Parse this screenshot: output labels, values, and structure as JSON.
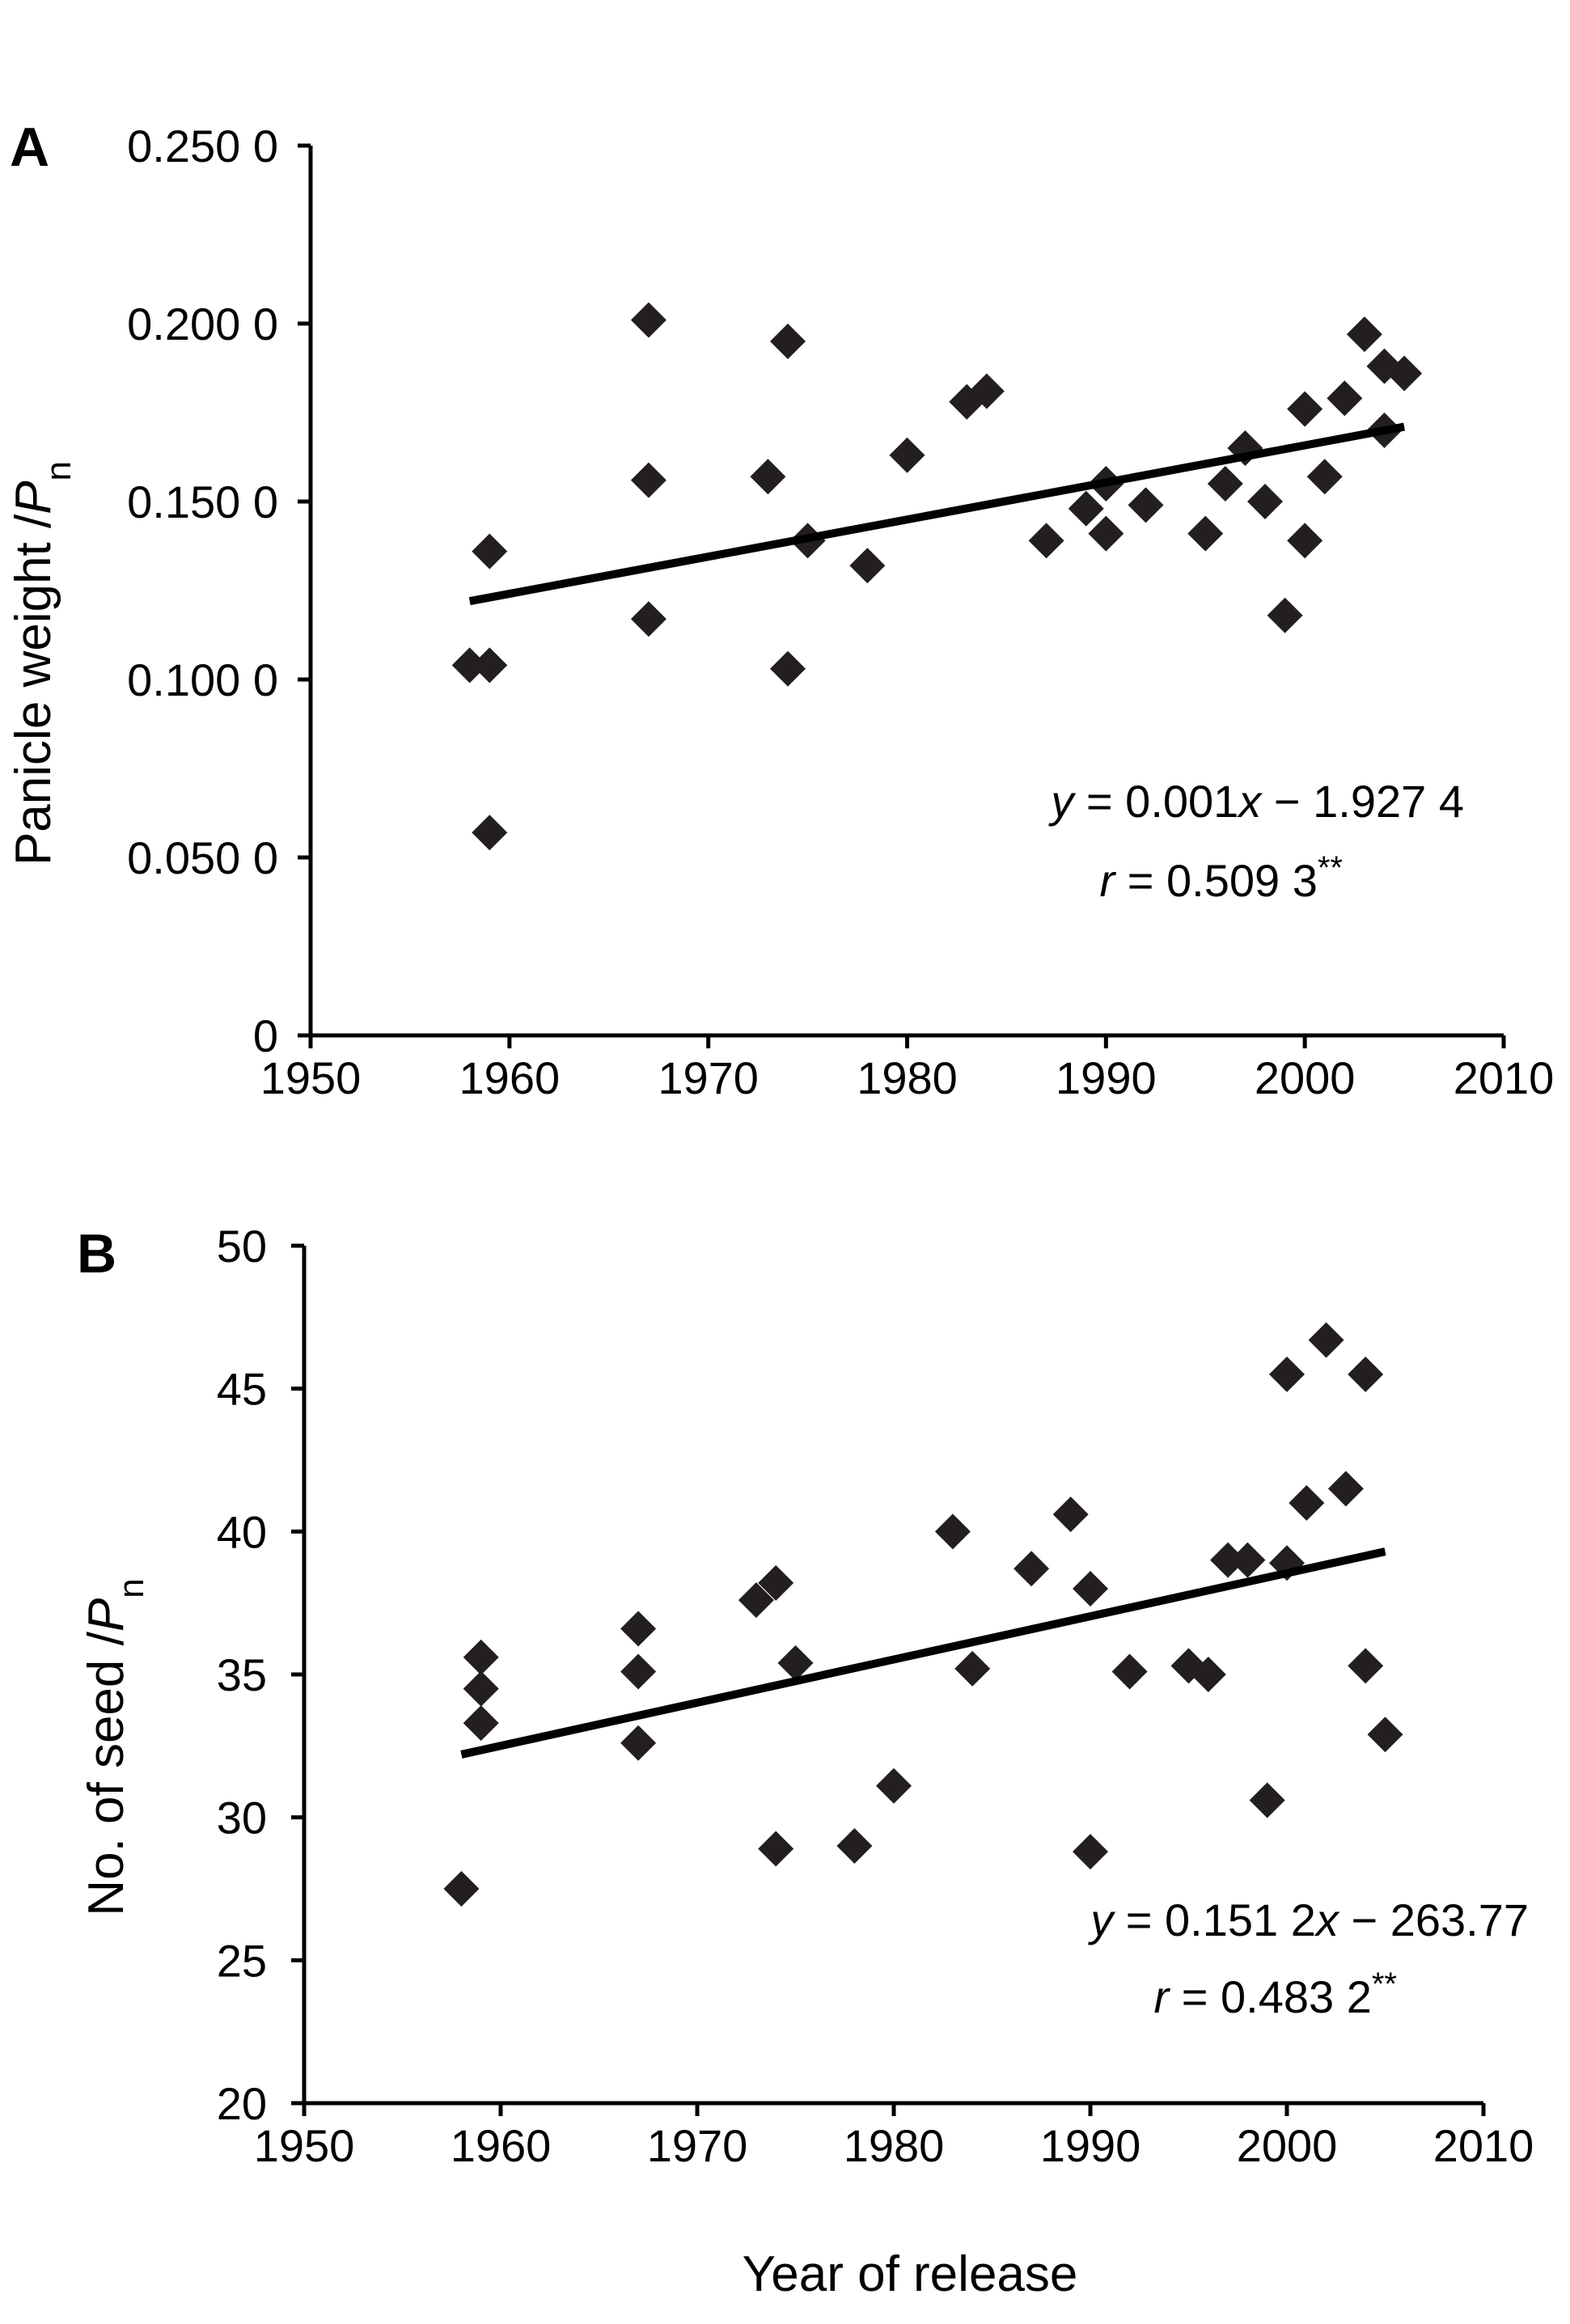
{
  "chart_data": [
    {
      "type": "scatter",
      "panel_label": "A",
      "ylabel": "Panicle weight /",
      "ylabel_var": "P",
      "ylabel_sub": "n",
      "xlabel": "",
      "xlim": [
        1950,
        2010
      ],
      "ylim": [
        0,
        0.25
      ],
      "xticks": [
        1950,
        1960,
        1970,
        1980,
        1990,
        2000,
        2010
      ],
      "yticks": [
        0,
        0.05,
        0.1,
        0.15,
        0.2,
        0.25
      ],
      "ytick_labels": [
        "0",
        "0.050 0",
        "0.100 0",
        "0.150 0",
        "0.200 0",
        "0.250 0"
      ],
      "points": [
        [
          1958,
          0.104
        ],
        [
          1959,
          0.104
        ],
        [
          1959,
          0.136
        ],
        [
          1959,
          0.057
        ],
        [
          1967,
          0.201
        ],
        [
          1967,
          0.156
        ],
        [
          1967,
          0.117
        ],
        [
          1973,
          0.157
        ],
        [
          1974,
          0.195
        ],
        [
          1974,
          0.103
        ],
        [
          1975,
          0.139
        ],
        [
          1978,
          0.132
        ],
        [
          1980,
          0.163
        ],
        [
          1983,
          0.178
        ],
        [
          1984,
          0.181
        ],
        [
          1987,
          0.139
        ],
        [
          1989,
          0.148
        ],
        [
          1990,
          0.155
        ],
        [
          1990,
          0.141
        ],
        [
          1992,
          0.149
        ],
        [
          1995,
          0.141
        ],
        [
          1996,
          0.155
        ],
        [
          1997,
          0.165
        ],
        [
          1998,
          0.15
        ],
        [
          1999,
          0.118
        ],
        [
          2000,
          0.176
        ],
        [
          2000,
          0.139
        ],
        [
          2001,
          0.157
        ],
        [
          2002,
          0.179
        ],
        [
          2003,
          0.197
        ],
        [
          2004,
          0.188
        ],
        [
          2004,
          0.17
        ],
        [
          2005,
          0.186
        ]
      ],
      "trendline": {
        "x": [
          1958,
          2005
        ],
        "y": [
          0.122,
          0.171
        ]
      },
      "annotation": {
        "line1": {
          "var": "y",
          "rest": " = 0.001",
          "xvar": "x",
          "tail": " − 1.927 4"
        },
        "line2": {
          "var": "r",
          "rest": " = 0.509 3",
          "sup": "**"
        }
      }
    },
    {
      "type": "scatter",
      "panel_label": "B",
      "ylabel": "No. of seed /",
      "ylabel_var": "P",
      "ylabel_sub": "n",
      "xlabel": "Year of release",
      "xlim": [
        1950,
        2010
      ],
      "ylim": [
        20,
        50
      ],
      "xticks": [
        1950,
        1960,
        1970,
        1980,
        1990,
        2000,
        2010
      ],
      "yticks": [
        20,
        25,
        30,
        35,
        40,
        45,
        50
      ],
      "ytick_labels": [
        "20",
        "25",
        "30",
        "35",
        "40",
        "45",
        "50"
      ],
      "points": [
        [
          1958,
          27.5
        ],
        [
          1959,
          35.6
        ],
        [
          1959,
          34.5
        ],
        [
          1959,
          33.3
        ],
        [
          1967,
          36.6
        ],
        [
          1967,
          35.1
        ],
        [
          1967,
          32.6
        ],
        [
          1973,
          37.6
        ],
        [
          1974,
          38.2
        ],
        [
          1974,
          28.9
        ],
        [
          1975,
          35.4
        ],
        [
          1978,
          29.0
        ],
        [
          1980,
          31.1
        ],
        [
          1983,
          40.0
        ],
        [
          1984,
          35.2
        ],
        [
          1987,
          38.7
        ],
        [
          1989,
          40.6
        ],
        [
          1990,
          38.0
        ],
        [
          1990,
          28.8
        ],
        [
          1992,
          35.1
        ],
        [
          1995,
          35.3
        ],
        [
          1996,
          35.0
        ],
        [
          1997,
          39.0
        ],
        [
          1998,
          39.0
        ],
        [
          1999,
          30.6
        ],
        [
          2000,
          45.5
        ],
        [
          2000,
          38.9
        ],
        [
          2001,
          41.0
        ],
        [
          2002,
          46.7
        ],
        [
          2003,
          41.5
        ],
        [
          2004,
          45.5
        ],
        [
          2004,
          35.3
        ],
        [
          2005,
          32.9
        ]
      ],
      "trendline": {
        "x": [
          1958,
          2005
        ],
        "y": [
          32.2,
          39.3
        ]
      },
      "annotation": {
        "line1": {
          "var": "y",
          "rest": " = 0.151 2",
          "xvar": "x",
          "tail": " − 263.77"
        },
        "line2": {
          "var": "r",
          "rest": " = 0.483 2",
          "sup": "**"
        }
      }
    }
  ]
}
